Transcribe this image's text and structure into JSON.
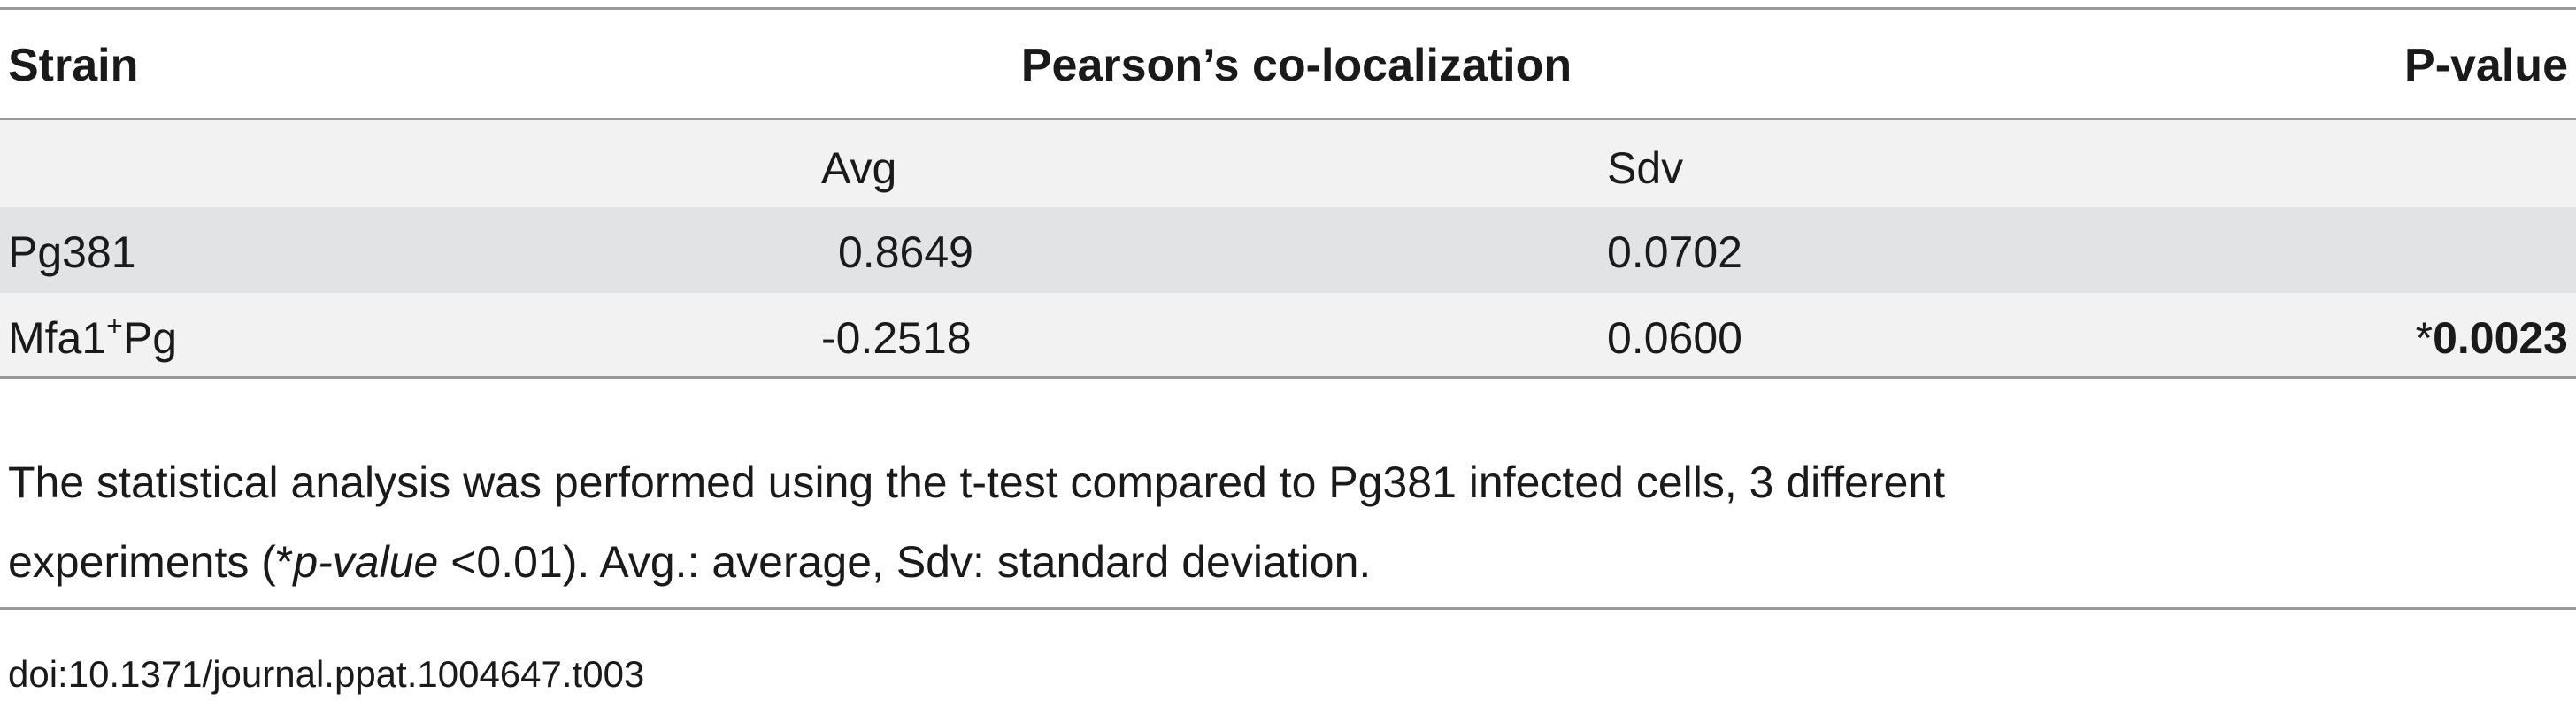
{
  "table": {
    "headers": [
      "Strain",
      "Pearson’s co-localization",
      "P-value"
    ],
    "subheaders": [
      "Avg",
      "Sdv"
    ],
    "rows": [
      {
        "strain": [
          "Pg381"
        ],
        "avg": "0.8649",
        "sdv": "0.0702"
      },
      {
        "strain": [
          "Mfa1",
          "+",
          "Pg"
        ],
        "avg": "-0.2518",
        "sdv": "0.0600",
        "p": [
          "*",
          "0.0023"
        ]
      }
    ]
  },
  "footnote": [
    "The statistical analysis was performed using the t-test compared to Pg381 infected cells, 3 different",
    "experiments (*",
    "p-value",
    " <0.01). Avg.: average, Sdv: standard deviation."
  ],
  "doi": "doi:10.1371/journal.ppat.1004647.t003"
}
